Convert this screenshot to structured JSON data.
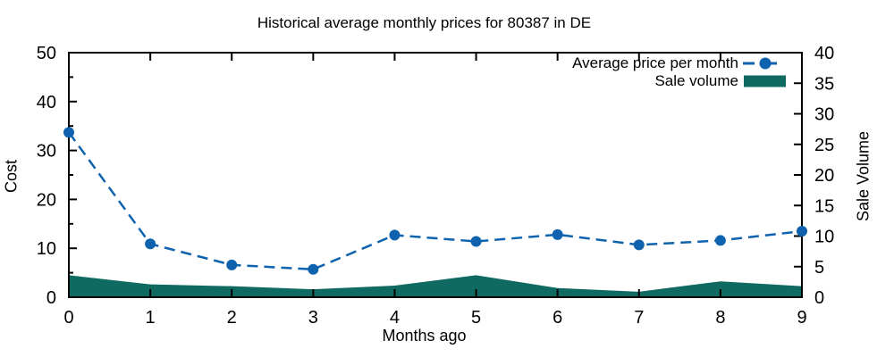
{
  "title": "Historical average monthly prices for 80387 in DE",
  "chart_data": {
    "type": "line",
    "title": "Historical average monthly prices for 80387 in DE",
    "xlabel": "Months ago",
    "ylabel_left": "Cost",
    "ylabel_right": "Sale Volume",
    "x": [
      0,
      1,
      2,
      3,
      4,
      5,
      6,
      7,
      8,
      9
    ],
    "series": [
      {
        "name": "Average price per month",
        "type": "line",
        "axis": "left",
        "style": "dashed-with-circle-markers",
        "color": "#0e62ae",
        "values": [
          33.7,
          10.9,
          6.6,
          5.7,
          12.7,
          11.4,
          12.8,
          10.7,
          11.6,
          13.5
        ]
      },
      {
        "name": "Sale volume",
        "type": "area",
        "axis": "right",
        "color": "#0f6a62",
        "values": [
          3.6,
          2.1,
          1.8,
          1.3,
          1.9,
          3.6,
          1.5,
          0.9,
          2.6,
          1.8
        ]
      }
    ],
    "xlim": [
      0,
      9
    ],
    "ylim_left": [
      0,
      50
    ],
    "ylim_right": [
      0,
      40
    ],
    "xticks": [
      0,
      1,
      2,
      3,
      4,
      5,
      6,
      7,
      8,
      9
    ],
    "yticks_left": [
      0,
      10,
      20,
      30,
      40,
      50
    ],
    "yticks_left_minor": [
      5,
      15,
      25,
      35,
      45
    ],
    "yticks_right": [
      0,
      5,
      10,
      15,
      20,
      25,
      30,
      35,
      40
    ],
    "grid": false,
    "legend_position": "top-right-inside",
    "frame_color": "#000000",
    "text_color": "#000000"
  }
}
